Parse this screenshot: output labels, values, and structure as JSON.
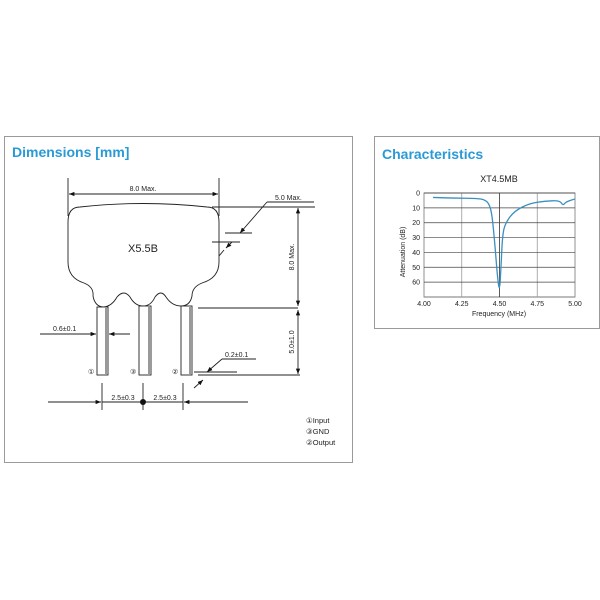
{
  "dimensions": {
    "title": "Dimensions [mm]",
    "part_marking": "X5.5B",
    "labels": {
      "width": "8.0 Max.",
      "thickness": "5.0 Max.",
      "height": "8.0 Max.",
      "lead_length": "5.0±1.0",
      "lead_width": "0.6±0.1",
      "lead_thickness": "0.2±0.1",
      "pitch_left": "2.5±0.3",
      "pitch_right": "2.5±0.3"
    },
    "pins": [
      "①",
      "③",
      "②"
    ],
    "legend": [
      "①Input",
      "③GND",
      "②Output"
    ]
  },
  "characteristics": {
    "title": "Characteristics",
    "chart_data": {
      "type": "line",
      "title": "XT4.5MB",
      "xlabel": "Frequency (MHz)",
      "ylabel": "Attenuation (dB)",
      "xlim": [
        4.0,
        5.0
      ],
      "ylim": [
        0,
        70
      ],
      "y_inverted": true,
      "grid": true,
      "xticks": [
        "4.00",
        "4.25",
        "4.50",
        "4.75",
        "5.00"
      ],
      "yticks": [
        "0",
        "10",
        "20",
        "30",
        "40",
        "50",
        "60"
      ],
      "color": "#3a8fc0",
      "x": [
        4.06,
        4.2,
        4.35,
        4.4,
        4.43,
        4.45,
        4.47,
        4.485,
        4.5,
        4.51,
        4.52,
        4.54,
        4.6,
        4.7,
        4.8,
        4.9,
        4.92,
        4.94,
        5.0
      ],
      "y": [
        3,
        3.5,
        3.6,
        4.5,
        7,
        14,
        35,
        55,
        67,
        50,
        28,
        20,
        12,
        7,
        5.5,
        5,
        8.5,
        6,
        4
      ]
    }
  }
}
